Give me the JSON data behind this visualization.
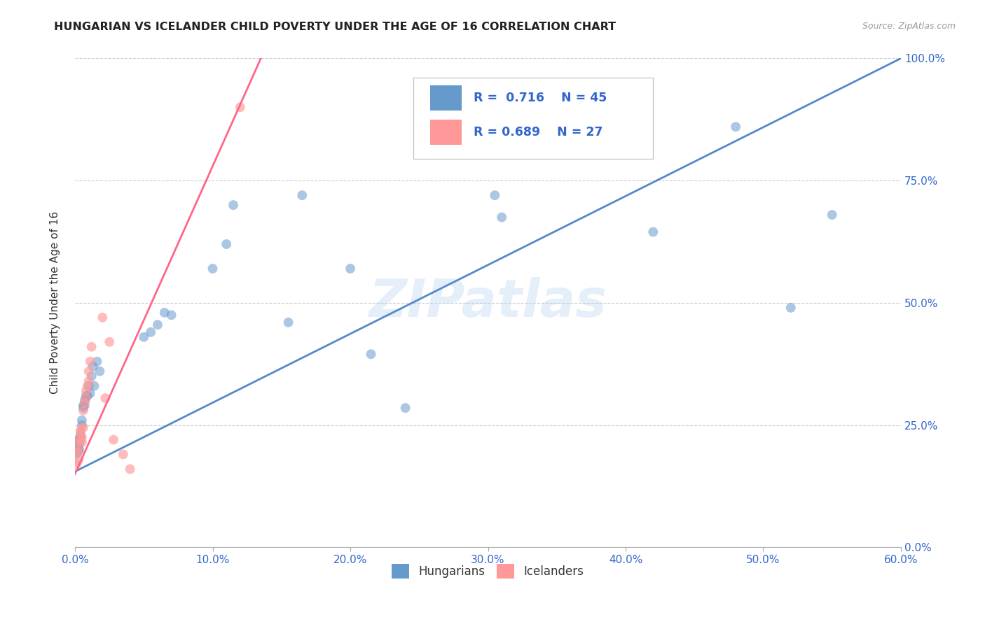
{
  "title": "HUNGARIAN VS ICELANDER CHILD POVERTY UNDER THE AGE OF 16 CORRELATION CHART",
  "source": "Source: ZipAtlas.com",
  "xlabel_ticks": [
    "0.0%",
    "10.0%",
    "20.0%",
    "30.0%",
    "40.0%",
    "50.0%",
    "60.0%"
  ],
  "ylabel_ticks": [
    "0.0%",
    "25.0%",
    "50.0%",
    "75.0%",
    "100.0%"
  ],
  "ylabel_label": "Child Poverty Under the Age of 16",
  "xmin": 0.0,
  "xmax": 0.6,
  "ymin": 0.0,
  "ymax": 1.0,
  "watermark": "ZIPatlas",
  "legend_label1": "Hungarians",
  "legend_label2": "Icelanders",
  "blue_color": "#6699CC",
  "pink_color": "#FF9999",
  "blue_line_color": "#5588CC",
  "pink_line_color": "#FF6688",
  "hungarian_x": [
    0.001,
    0.001,
    0.002,
    0.002,
    0.002,
    0.003,
    0.003,
    0.003,
    0.004,
    0.004,
    0.005,
    0.005,
    0.006,
    0.006,
    0.007,
    0.007,
    0.008,
    0.008,
    0.009,
    0.01,
    0.011,
    0.012,
    0.013,
    0.014,
    0.016,
    0.018,
    0.05,
    0.055,
    0.06,
    0.065,
    0.07,
    0.1,
    0.11,
    0.115,
    0.155,
    0.165,
    0.2,
    0.215,
    0.24,
    0.305,
    0.31,
    0.42,
    0.48,
    0.52,
    0.55
  ],
  "hungarian_y": [
    0.2,
    0.19,
    0.21,
    0.22,
    0.195,
    0.22,
    0.21,
    0.2,
    0.23,
    0.22,
    0.25,
    0.26,
    0.285,
    0.29,
    0.29,
    0.3,
    0.305,
    0.31,
    0.31,
    0.33,
    0.315,
    0.35,
    0.37,
    0.33,
    0.38,
    0.36,
    0.43,
    0.44,
    0.455,
    0.48,
    0.475,
    0.57,
    0.62,
    0.7,
    0.46,
    0.72,
    0.57,
    0.395,
    0.285,
    0.72,
    0.675,
    0.645,
    0.86,
    0.49,
    0.68
  ],
  "hungarian_sizes": [
    220,
    100,
    100,
    100,
    100,
    100,
    100,
    100,
    100,
    100,
    100,
    100,
    100,
    100,
    100,
    100,
    100,
    100,
    100,
    100,
    100,
    100,
    100,
    100,
    100,
    100,
    100,
    100,
    100,
    100,
    100,
    100,
    100,
    100,
    100,
    100,
    100,
    100,
    100,
    100,
    100,
    100,
    100,
    100,
    100
  ],
  "icelander_x": [
    0.001,
    0.001,
    0.002,
    0.002,
    0.003,
    0.003,
    0.004,
    0.004,
    0.005,
    0.005,
    0.006,
    0.006,
    0.007,
    0.008,
    0.008,
    0.009,
    0.01,
    0.01,
    0.011,
    0.012,
    0.02,
    0.022,
    0.025,
    0.028,
    0.035,
    0.04,
    0.12
  ],
  "icelander_y": [
    0.18,
    0.17,
    0.195,
    0.2,
    0.215,
    0.22,
    0.235,
    0.24,
    0.215,
    0.225,
    0.245,
    0.28,
    0.295,
    0.305,
    0.32,
    0.33,
    0.34,
    0.36,
    0.38,
    0.41,
    0.47,
    0.305,
    0.42,
    0.22,
    0.19,
    0.16,
    0.9
  ],
  "icelander_sizes": [
    220,
    100,
    100,
    100,
    100,
    100,
    100,
    100,
    100,
    100,
    100,
    100,
    100,
    100,
    100,
    100,
    100,
    100,
    100,
    100,
    100,
    100,
    100,
    100,
    100,
    100,
    100
  ],
  "blue_line_x": [
    0.0,
    0.6
  ],
  "blue_line_y": [
    0.155,
    1.0
  ],
  "pink_line_x": [
    0.0,
    0.135
  ],
  "pink_line_y": [
    0.15,
    1.0
  ]
}
